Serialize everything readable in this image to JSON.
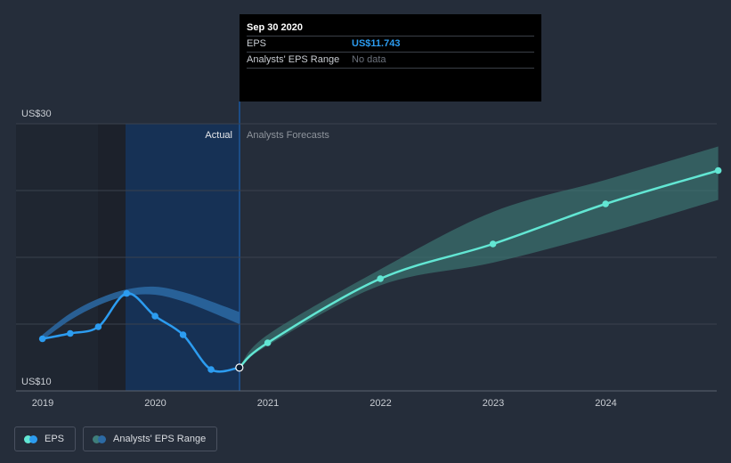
{
  "tooltip": {
    "date": "Sep 30 2020",
    "eps_label": "EPS",
    "eps_value": "US$11.743",
    "range_label": "Analysts' EPS Range",
    "range_value": "No data"
  },
  "divider": {
    "actual": "Actual",
    "forecast": "Analysts Forecasts"
  },
  "legend": {
    "eps": "EPS",
    "range": "Analysts' EPS Range"
  },
  "colors": {
    "background": "#252d3a",
    "eps_actual": "#2c9cf0",
    "eps_forecast": "#62e6d3",
    "range_forecast": "#3f7e7a",
    "range_past": "#2c6aa4",
    "highlight": "#14325a"
  },
  "chart_data": {
    "type": "line",
    "x_ticks": [
      "2019",
      "2020",
      "2021",
      "2022",
      "2023",
      "2024"
    ],
    "y_ticks": [
      "US$10",
      "US$30"
    ],
    "ylim": [
      10,
      30
    ],
    "grid": true,
    "series": [
      {
        "name": "EPS",
        "segment": "actual",
        "points": [
          {
            "x": "2018-12-31",
            "y": 13.9
          },
          {
            "x": "2019-03-31",
            "y": 14.3
          },
          {
            "x": "2019-06-30",
            "y": 14.8
          },
          {
            "x": "2019-09-30",
            "y": 17.3
          },
          {
            "x": "2019-12-31",
            "y": 15.6
          },
          {
            "x": "2020-03-31",
            "y": 14.2
          },
          {
            "x": "2020-06-30",
            "y": 11.6
          },
          {
            "x": "2020-09-30",
            "y": 11.743
          }
        ]
      },
      {
        "name": "EPS",
        "segment": "forecast",
        "points": [
          {
            "x": "2020-09-30",
            "y": 11.743
          },
          {
            "x": "2020-12-31",
            "y": 13.6
          },
          {
            "x": "2021-12-31",
            "y": 18.4
          },
          {
            "x": "2022-12-31",
            "y": 21.0
          },
          {
            "x": "2023-12-31",
            "y": 24.0
          },
          {
            "x": "2024-12-31",
            "y": 26.5
          }
        ]
      },
      {
        "name": "Analysts' EPS Range",
        "segment": "past",
        "points": [
          {
            "x": "2018-12-31",
            "low": 13.8,
            "high": 14.2
          },
          {
            "x": "2019-03-31",
            "low": 15.3,
            "high": 15.8
          },
          {
            "x": "2019-06-30",
            "low": 16.4,
            "high": 16.9
          },
          {
            "x": "2019-09-30",
            "low": 17.1,
            "high": 17.6
          },
          {
            "x": "2019-12-31",
            "low": 17.2,
            "high": 17.8
          },
          {
            "x": "2020-03-31",
            "low": 16.7,
            "high": 17.4
          },
          {
            "x": "2020-06-30",
            "low": 15.9,
            "high": 16.7
          },
          {
            "x": "2020-09-30",
            "low": 15.0,
            "high": 15.9
          }
        ]
      },
      {
        "name": "Analysts' EPS Range",
        "segment": "forecast",
        "points": [
          {
            "x": "2020-09-30",
            "low": 11.743,
            "high": 11.743
          },
          {
            "x": "2020-12-31",
            "low": 13.4,
            "high": 14.2
          },
          {
            "x": "2021-12-31",
            "low": 17.9,
            "high": 19.1
          },
          {
            "x": "2022-12-31",
            "low": 19.6,
            "high": 23.4
          },
          {
            "x": "2023-12-31",
            "low": 21.8,
            "high": 25.8
          },
          {
            "x": "2024-12-31",
            "low": 24.3,
            "high": 28.3
          }
        ]
      }
    ]
  }
}
